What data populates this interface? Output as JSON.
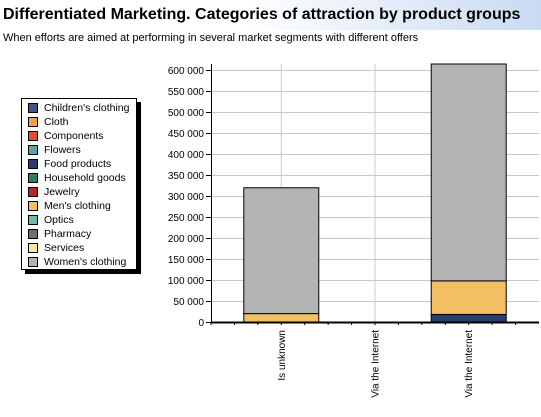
{
  "header": {
    "title": "Differentiated Marketing. Categories of attraction by product groups",
    "subtitle": "When efforts are aimed at performing in several market segments with different offers"
  },
  "chart_data": {
    "type": "bar",
    "stacked": true,
    "categories": [
      "Is unknown",
      "Via the Internet",
      "Via the Internet"
    ],
    "series": [
      {
        "name": "Children's clothing",
        "color": "#3e5585",
        "values": [
          0,
          0,
          0
        ]
      },
      {
        "name": "Cloth",
        "color": "#f0a04a",
        "values": [
          0,
          0,
          0
        ]
      },
      {
        "name": "Components",
        "color": "#e0512a",
        "values": [
          0,
          0,
          0
        ]
      },
      {
        "name": "Flowers",
        "color": "#5fa0ad",
        "values": [
          0,
          0,
          0
        ]
      },
      {
        "name": "Food products",
        "color": "#2b3c6e",
        "values": [
          0,
          0,
          18000
        ]
      },
      {
        "name": "Household goods",
        "color": "#2e7d5b",
        "values": [
          0,
          0,
          0
        ]
      },
      {
        "name": "Jewelry",
        "color": "#b8242c",
        "values": [
          0,
          0,
          0
        ]
      },
      {
        "name": "Men's clothing",
        "color": "#f2c062",
        "values": [
          20000,
          0,
          80000
        ]
      },
      {
        "name": "Optics",
        "color": "#72b8a0",
        "values": [
          0,
          0,
          0
        ]
      },
      {
        "name": "Pharmacy",
        "color": "#6e6e6e",
        "values": [
          0,
          0,
          0
        ]
      },
      {
        "name": "Services",
        "color": "#f7e6a0",
        "values": [
          0,
          0,
          0
        ]
      },
      {
        "name": "Women's clothing",
        "color": "#b3b3b3",
        "values": [
          300000,
          0,
          517000
        ]
      }
    ],
    "yticks": [
      0,
      50000,
      100000,
      150000,
      200000,
      250000,
      300000,
      350000,
      400000,
      450000,
      500000,
      550000,
      600000
    ],
    "ytick_labels": [
      "0",
      "50 000",
      "100 000",
      "150 000",
      "200 000",
      "250 000",
      "300 000",
      "350 000",
      "400 000",
      "450 000",
      "500 000",
      "550 000",
      "600 000"
    ],
    "ylim": [
      0,
      615000
    ],
    "grid": true,
    "legend_position": "left"
  }
}
